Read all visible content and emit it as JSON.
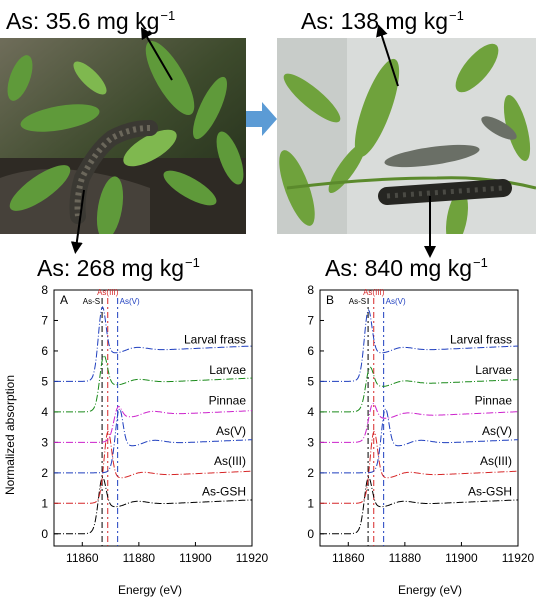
{
  "photos": {
    "left": {
      "leaf_label": "As: 35.6 mg kg",
      "larva_label": "As: 268 mg kg",
      "unit_exponent": "−1"
    },
    "right": {
      "leaf_label": "As: 138 mg kg",
      "larva_label": "As: 840 mg kg",
      "unit_exponent": "−1"
    },
    "arrow_color": "#5b9bd5"
  },
  "shared_axes": {
    "ylabel": "Normalized absorption",
    "xlabel": "Energy (eV)"
  },
  "chart_data": [
    {
      "type": "line",
      "panel_label": "A",
      "xlim": [
        11850,
        11920
      ],
      "ylim": [
        -0.4,
        8
      ],
      "x_ticks": [
        11860,
        11880,
        11900,
        11920
      ],
      "y_ticks": [
        0,
        1,
        2,
        3,
        4,
        5,
        6,
        7,
        8
      ],
      "reference_lines": [
        {
          "label": "As-S",
          "x": 11867,
          "color": "#000000"
        },
        {
          "label": "As(III)",
          "x": 11869,
          "color": "#d62728"
        },
        {
          "label": "As(V)",
          "x": 11872.5,
          "color": "#1f3fbf"
        }
      ],
      "series": [
        {
          "name": "As-GSH",
          "offset": 0,
          "color": "#000000",
          "peak_x": 11867,
          "peak": 2.0,
          "post_edge": 0.9
        },
        {
          "name": "As(III)",
          "offset": 1,
          "color": "#d62728",
          "peak_x": 11869,
          "peak": 2.5,
          "post_edge": 0.85
        },
        {
          "name": "As(V)",
          "offset": 2,
          "color": "#1f3fbf",
          "peak_x": 11873,
          "peak": 2.25,
          "post_edge": 0.9
        },
        {
          "name": "Pinnae",
          "offset": 3,
          "color": "#cc22cc",
          "peak_x": 11872.5,
          "peak": 1.3,
          "post_edge": 0.85
        },
        {
          "name": "Larvae",
          "offset": 4,
          "color": "#1a8a1a",
          "peak_x": 11867.5,
          "peak": 2.0,
          "post_edge": 0.9
        },
        {
          "name": "Larval frass",
          "offset": 5,
          "color": "#1f3fbf",
          "peak_x": 11867,
          "peak": 2.6,
          "post_edge": 0.95
        }
      ]
    },
    {
      "type": "line",
      "panel_label": "B",
      "xlim": [
        11850,
        11920
      ],
      "ylim": [
        -0.4,
        8
      ],
      "x_ticks": [
        11860,
        11880,
        11900,
        11920
      ],
      "y_ticks": [
        0,
        1,
        2,
        3,
        4,
        5,
        6,
        7,
        8
      ],
      "reference_lines": [
        {
          "label": "As-S",
          "x": 11867,
          "color": "#000000"
        },
        {
          "label": "As(III)",
          "x": 11869,
          "color": "#d62728"
        },
        {
          "label": "As(V)",
          "x": 11872.5,
          "color": "#1f3fbf"
        }
      ],
      "series": [
        {
          "name": "As-GSH",
          "offset": 0,
          "color": "#000000",
          "peak_x": 11867,
          "peak": 2.0,
          "post_edge": 0.9
        },
        {
          "name": "As(III)",
          "offset": 1,
          "color": "#d62728",
          "peak_x": 11869,
          "peak": 2.5,
          "post_edge": 0.85
        },
        {
          "name": "As(V)",
          "offset": 2,
          "color": "#1f3fbf",
          "peak_x": 11873,
          "peak": 2.25,
          "post_edge": 0.9
        },
        {
          "name": "Pinnae",
          "offset": 3,
          "color": "#cc22cc",
          "peak_x": 11868.5,
          "peak": 1.4,
          "post_edge": 0.8
        },
        {
          "name": "Larvae",
          "offset": 4,
          "color": "#1a8a1a",
          "peak_x": 11867.5,
          "peak": 1.6,
          "post_edge": 0.85
        },
        {
          "name": "Larval frass",
          "offset": 5,
          "color": "#1f3fbf",
          "peak_x": 11867,
          "peak": 2.5,
          "post_edge": 0.95
        }
      ]
    }
  ]
}
